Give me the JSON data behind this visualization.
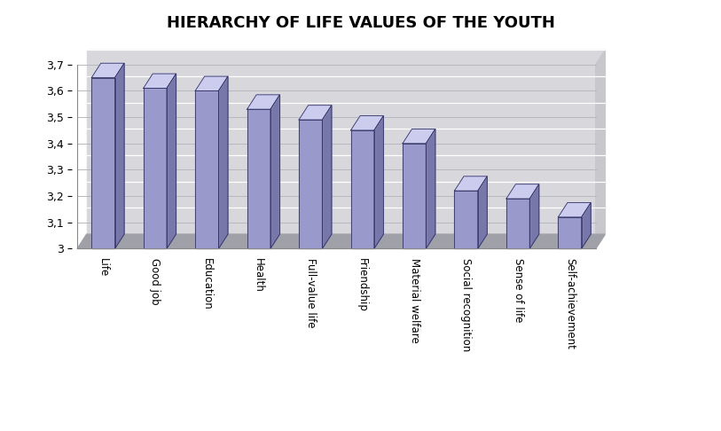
{
  "title": "HIERARCHY OF LIFE VALUES OF THE YOUTH",
  "categories": [
    "Life",
    "Good job",
    "Education",
    "Health",
    "Full-value life",
    "Friendship",
    "Material welfare",
    "Social recognition",
    "Sense of life",
    "Self-achievement"
  ],
  "values": [
    3.65,
    3.61,
    3.6,
    3.53,
    3.49,
    3.45,
    3.4,
    3.22,
    3.19,
    3.12
  ],
  "ylim_min": 3.0,
  "ylim_max": 3.7,
  "yticks": [
    3.0,
    3.1,
    3.2,
    3.3,
    3.4,
    3.5,
    3.6,
    3.7
  ],
  "ytick_labels": [
    "3",
    "3,1",
    "3,2",
    "3,3",
    "3,4",
    "3,5",
    "3,6",
    "3,7"
  ],
  "bar_face_color": "#9999cc",
  "bar_top_color": "#ccccee",
  "bar_side_color": "#7777aa",
  "bar_edge_color": "#333366",
  "back_wall_color": "#d8d8dc",
  "right_wall_color": "#c8c8cc",
  "floor_color": "#a0a0a8",
  "grid_color": "#b8b8c0",
  "title_fontsize": 13,
  "tick_fontsize": 9,
  "label_fontsize": 8.5,
  "bar_width": 0.45,
  "ox": 0.18,
  "oy": 0.055
}
